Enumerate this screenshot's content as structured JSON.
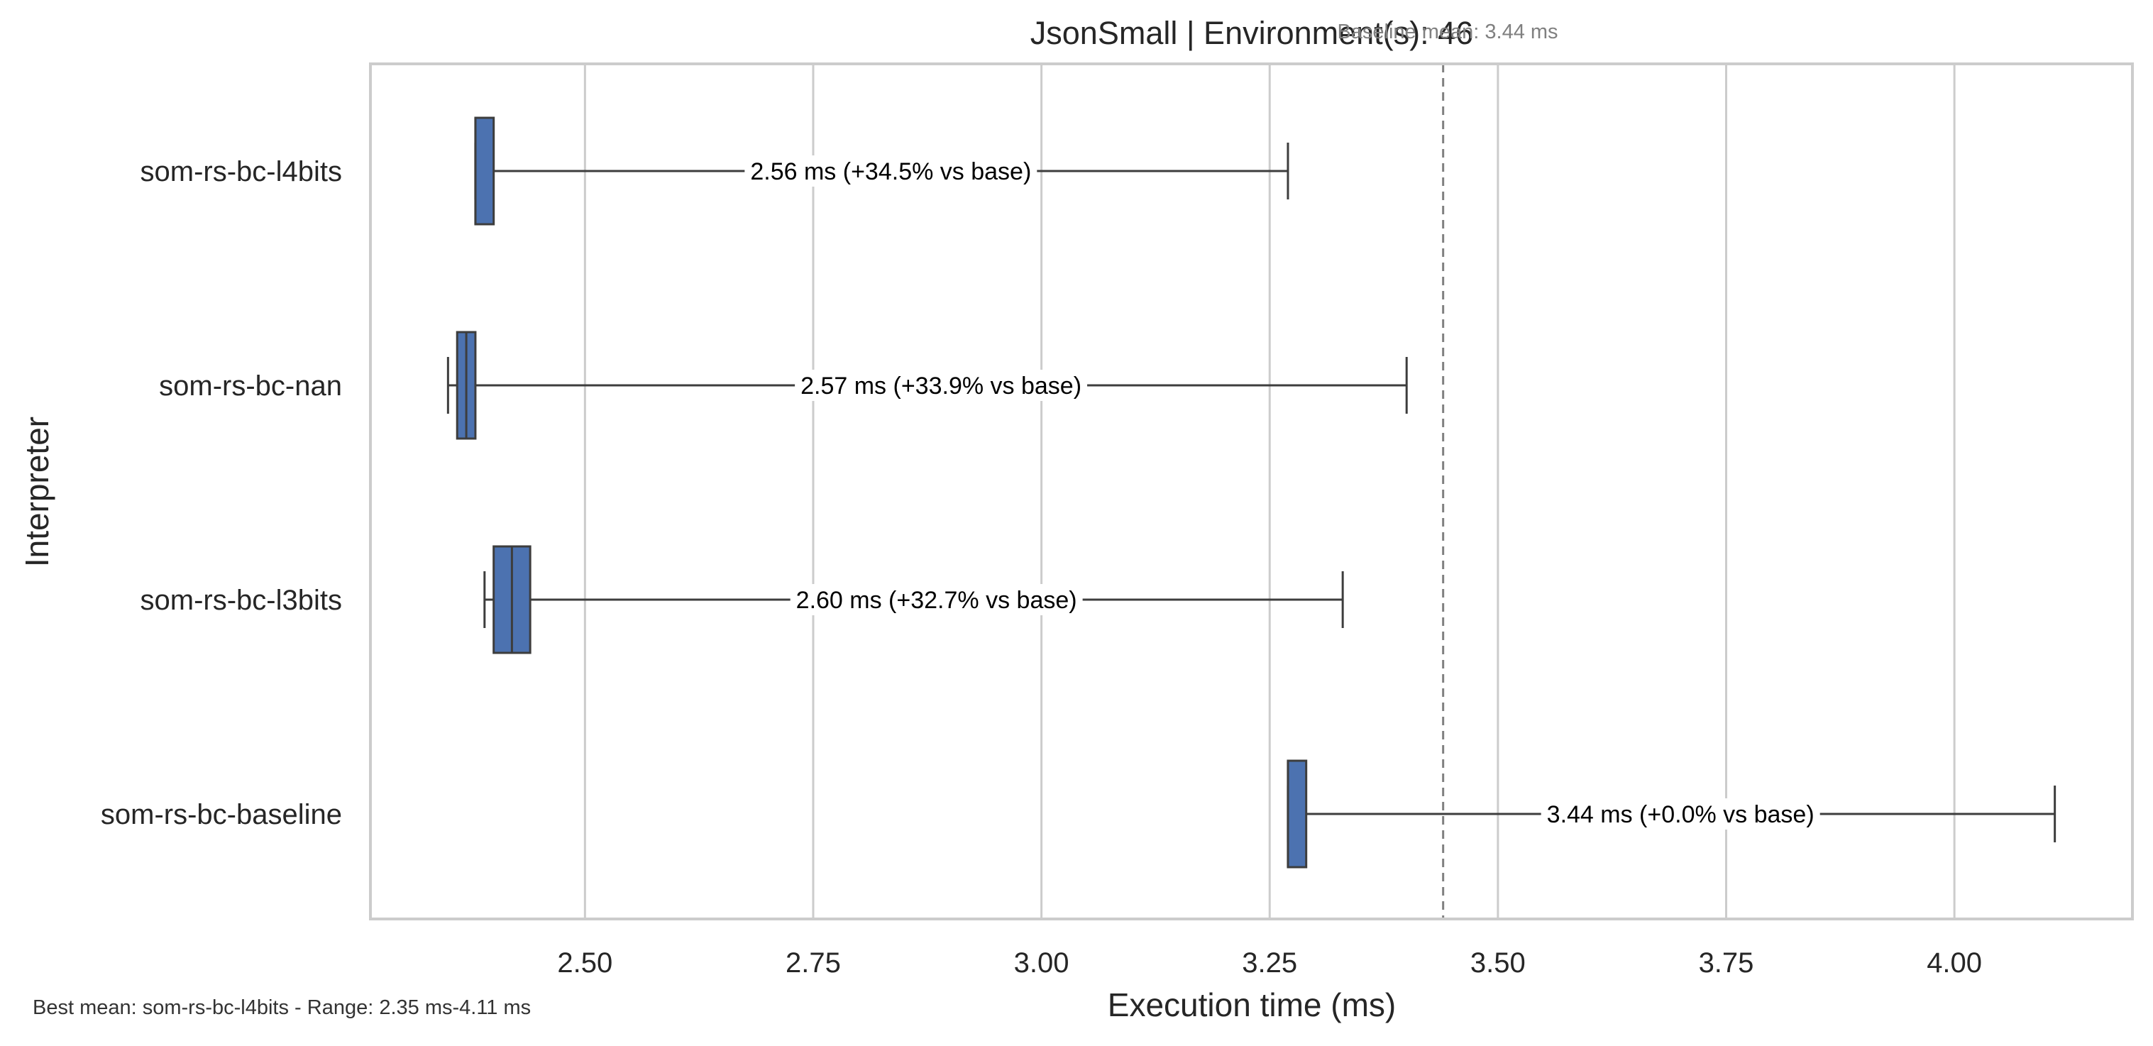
{
  "chart_data": {
    "type": "box",
    "title": "JsonSmall | Environment(s): 46",
    "xlabel": "Execution time (ms)",
    "ylabel": "Interpreter",
    "xlim": [
      2.265,
      4.195
    ],
    "xticks": [
      2.5,
      2.75,
      3.0,
      3.25,
      3.5,
      3.75,
      4.0
    ],
    "xtick_labels": [
      "2.50",
      "2.75",
      "3.00",
      "3.25",
      "3.50",
      "3.75",
      "4.00"
    ],
    "grid": "vertical",
    "categories": [
      "som-rs-bc-l4bits",
      "som-rs-bc-nan",
      "som-rs-bc-l3bits",
      "som-rs-bc-baseline"
    ],
    "boxes": [
      {
        "name": "som-rs-bc-l4bits",
        "min": 2.38,
        "q1": 2.38,
        "median": 2.38,
        "q3": 2.4,
        "max": 3.27,
        "mean_label": "2.56 ms  (+34.5% vs base)"
      },
      {
        "name": "som-rs-bc-nan",
        "min": 2.35,
        "q1": 2.36,
        "median": 2.37,
        "q3": 2.38,
        "max": 3.4,
        "mean_label": "2.57 ms  (+33.9% vs base)"
      },
      {
        "name": "som-rs-bc-l3bits",
        "min": 2.39,
        "q1": 2.4,
        "median": 2.42,
        "q3": 2.44,
        "max": 3.33,
        "mean_label": "2.60 ms  (+32.7% vs base)"
      },
      {
        "name": "som-rs-bc-baseline",
        "min": 3.27,
        "q1": 3.27,
        "median": 3.27,
        "q3": 3.29,
        "max": 4.11,
        "mean_label": "3.44 ms  (+0.0% vs base)"
      }
    ],
    "reference_line": {
      "value": 3.44,
      "label": "Baseline mean: 3.44 ms",
      "style": "dashed"
    },
    "box_color": "#4c72b0"
  },
  "footnote": "Best mean: som-rs-bc-l4bits - Range: 2.35 ms-4.11 ms"
}
